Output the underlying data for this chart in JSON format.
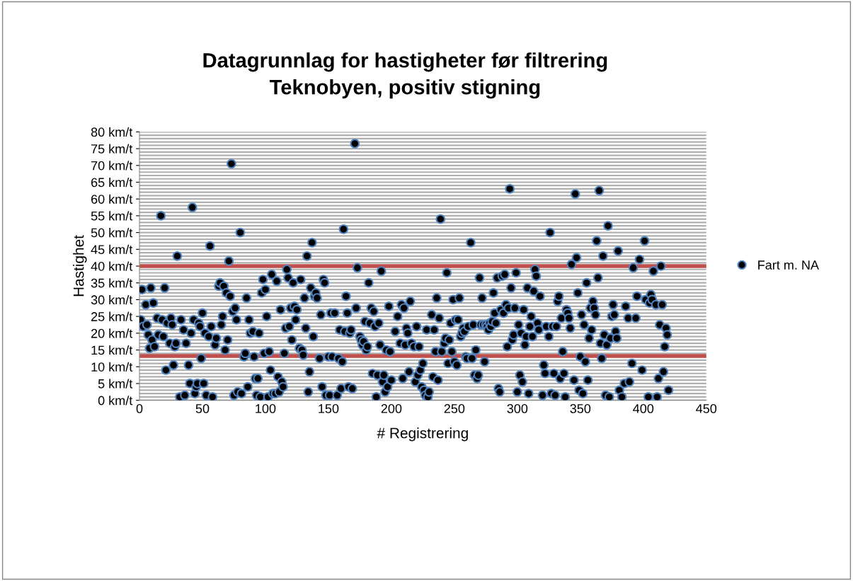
{
  "chart_data": {
    "type": "scatter",
    "title": "Datagrunnlag for hastigheter før filtrering\nTeknobyen, positiv stigning",
    "xlabel": "# Registrering",
    "ylabel": "Hastighet",
    "xlim": [
      0,
      450
    ],
    "xticks": [
      0,
      50,
      100,
      150,
      200,
      250,
      300,
      350,
      400,
      450
    ],
    "ylim": [
      0,
      80
    ],
    "yticks": [
      {
        "value": 0,
        "label": "0 km/t"
      },
      {
        "value": 5,
        "label": "5 km/t"
      },
      {
        "value": 10,
        "label": "10 km/t"
      },
      {
        "value": 15,
        "label": "15 km/t"
      },
      {
        "value": 20,
        "label": "20 km/t"
      },
      {
        "value": 25,
        "label": "25 km/t"
      },
      {
        "value": 30,
        "label": "30 km/t"
      },
      {
        "value": 35,
        "label": "35 km/t"
      },
      {
        "value": 40,
        "label": "40 km/t"
      },
      {
        "value": 45,
        "label": "45 km/t"
      },
      {
        "value": 50,
        "label": "50 km/t"
      },
      {
        "value": 55,
        "label": "55 km/t"
      },
      {
        "value": 60,
        "label": "60 km/t"
      },
      {
        "value": 65,
        "label": "65 km/t"
      },
      {
        "value": 70,
        "label": "70 km/t"
      },
      {
        "value": 75,
        "label": "75 km/t"
      },
      {
        "value": 80,
        "label": "80 km/t"
      }
    ],
    "grid": "y",
    "legend": "right",
    "marker": "circle",
    "ref_lines": [
      {
        "axis": "y",
        "value": 40,
        "color": "#c0504d"
      },
      {
        "axis": "y",
        "value": 13.2,
        "color": "#c0504d"
      }
    ],
    "series": [
      {
        "name": "Fart m. NA",
        "color": "#000000",
        "x": [
          1,
          2,
          3,
          5,
          6,
          7,
          8,
          9,
          10,
          11,
          12,
          14,
          15,
          17,
          18,
          19,
          20,
          21,
          22,
          24,
          25,
          26,
          27,
          28,
          29,
          30,
          32,
          33,
          35,
          36,
          37,
          39,
          40,
          41,
          42,
          43,
          44,
          45,
          46,
          47,
          48,
          49,
          50,
          51,
          52,
          53,
          55,
          56,
          57,
          58,
          60,
          61,
          63,
          64,
          65,
          66,
          67,
          68,
          69,
          70,
          71,
          72,
          73,
          74,
          75,
          76,
          77,
          78,
          80,
          81,
          83,
          84,
          85,
          86,
          87,
          88,
          90,
          91,
          92,
          93,
          94,
          95,
          96,
          97,
          98,
          99,
          100,
          101,
          102,
          103,
          104,
          105,
          106,
          108,
          109,
          110,
          111,
          112,
          113,
          114,
          115,
          116,
          117,
          118,
          119,
          120,
          121,
          122,
          123,
          124,
          125,
          127,
          128,
          129,
          130,
          131,
          132,
          133,
          134,
          135,
          136,
          137,
          138,
          139,
          140,
          141,
          143,
          144,
          145,
          146,
          147,
          148,
          150,
          151,
          152,
          153,
          155,
          157,
          158,
          159,
          160,
          161,
          162,
          163,
          164,
          165,
          166,
          167,
          168,
          169,
          171,
          172,
          173,
          175,
          176,
          177,
          178,
          179,
          180,
          181,
          182,
          183,
          184,
          185,
          186,
          187,
          188,
          189,
          190,
          191,
          192,
          193,
          194,
          195,
          196,
          197,
          198,
          199,
          200,
          203,
          205,
          207,
          208,
          209,
          210,
          211,
          212,
          213,
          214,
          215,
          216,
          218,
          219,
          220,
          221,
          222,
          223,
          224,
          225,
          226,
          227,
          228,
          229,
          230,
          232,
          233,
          234,
          235,
          236,
          237,
          238,
          239,
          240,
          242,
          243,
          244,
          245,
          246,
          247,
          248,
          249,
          250,
          251,
          252,
          253,
          254,
          255,
          256,
          257,
          258,
          259,
          260,
          261,
          263,
          264,
          265,
          266,
          267,
          268,
          269,
          270,
          271,
          272,
          273,
          274,
          275,
          276,
          277,
          278,
          279,
          280,
          281,
          282,
          283,
          284,
          285,
          286,
          287,
          288,
          289,
          290,
          291,
          292,
          293,
          294,
          295,
          296,
          297,
          298,
          299,
          300,
          301,
          302,
          303,
          304,
          305,
          306,
          307,
          308,
          309,
          310,
          311,
          312,
          313,
          314,
          315,
          316,
          317,
          318,
          320,
          321,
          322,
          323,
          325,
          326,
          327,
          328,
          329,
          330,
          331,
          332,
          333,
          334,
          335,
          336,
          337,
          338,
          339,
          340,
          341,
          342,
          343,
          345,
          346,
          347,
          348,
          349,
          350,
          351,
          352,
          353,
          354,
          355,
          356,
          357,
          358,
          359,
          360,
          361,
          362,
          363,
          364,
          365,
          366,
          367,
          368,
          369,
          370,
          371,
          372,
          373,
          374,
          375,
          376,
          377,
          378,
          379,
          380,
          381,
          383,
          385,
          386,
          388,
          389,
          391,
          392,
          394,
          395,
          397,
          399,
          401,
          402,
          404,
          405,
          406,
          407,
          408,
          410,
          411,
          412,
          413,
          414,
          415,
          416,
          417,
          418,
          419,
          420
        ],
        "values": [
          24,
          33,
          22,
          28.5,
          22.5,
          19.5,
          15.5,
          33.5,
          18,
          29,
          16,
          24.5,
          19.5,
          55,
          24,
          19,
          33.5,
          9,
          23,
          17,
          24.5,
          22.5,
          10.5,
          16,
          17,
          43,
          1,
          24,
          21,
          1.5,
          17,
          10.5,
          5,
          20,
          57.5,
          24,
          2,
          4,
          5,
          23,
          22,
          12.5,
          26,
          5,
          20,
          1.5,
          19,
          46,
          22,
          1,
          16.5,
          18.5,
          34,
          35,
          22.5,
          25,
          34,
          15,
          32,
          18,
          41.5,
          31,
          70.5,
          26.5,
          1.5,
          27.5,
          24,
          2.5,
          50,
          2,
          13,
          14,
          30.5,
          4,
          24,
          20,
          20.5,
          13,
          6.5,
          1.5,
          6.5,
          20,
          1,
          32,
          36,
          14,
          33,
          25,
          1,
          14.5,
          9,
          37.5,
          2,
          2,
          35.5,
          7,
          2.5,
          27,
          5.5,
          4,
          14,
          21.5,
          39,
          36.5,
          22,
          27.5,
          18,
          35,
          28,
          24,
          27,
          15.5,
          36,
          15,
          13.5,
          30.5,
          21.5,
          43,
          2.5,
          8.5,
          33.5,
          47,
          19,
          31,
          32,
          30.5,
          12.5,
          25.5,
          4,
          36,
          35,
          1.5,
          13,
          1.5,
          26,
          13,
          26,
          1.5,
          12.5,
          21,
          3.5,
          11.5,
          51,
          20.5,
          31,
          26,
          4,
          20,
          21,
          3.5,
          76.5,
          27.5,
          39.5,
          19,
          18,
          16.5,
          17.5,
          23.5,
          15,
          16,
          35,
          23,
          27.5,
          8,
          26.5,
          22,
          1,
          7.5,
          23,
          16.5,
          38.5,
          5.5,
          7.5,
          2.5,
          15,
          4,
          28,
          14.5,
          6,
          20.5,
          25,
          17,
          28.5,
          6.5,
          27.5,
          16.5,
          21.5,
          20,
          8.5,
          29.5,
          17,
          16,
          5.5,
          22,
          7.5,
          16,
          9,
          4,
          11,
          3,
          1.5,
          21,
          1,
          2.5,
          25.5,
          7,
          21,
          14.5,
          30.5,
          6,
          24.5,
          54,
          14.5,
          17,
          18.5,
          38,
          11,
          18,
          23,
          14.5,
          30,
          11.5,
          24,
          10.5,
          24,
          30.5,
          19,
          20,
          21.5,
          20.5,
          13,
          12.5,
          22,
          47,
          12.5,
          22.5,
          7.5,
          15,
          6.5,
          7.5,
          36.5,
          22.5,
          30.5,
          22.5,
          11.5,
          22.5,
          22,
          21,
          23,
          22,
          23.5,
          32,
          26,
          23,
          36.5,
          3.5,
          2.5,
          27,
          37,
          26,
          37.5,
          28.5,
          16,
          27.5,
          63,
          33.5,
          18,
          19.5,
          27.5,
          38,
          2.5,
          22.5,
          7.5,
          20,
          5.5,
          27,
          16.5,
          19,
          33.5,
          2,
          22,
          25,
          19,
          32.5,
          39,
          37,
          23,
          21,
          31,
          1.5,
          10.5,
          8,
          22,
          19,
          50,
          2,
          22,
          8,
          1.5,
          22,
          29.5,
          31,
          6.5,
          24.5,
          14.5,
          8,
          1,
          27,
          26,
          24.5,
          21.5,
          40.5,
          6,
          61.5,
          42.5,
          32,
          3,
          13,
          25.5,
          2,
          22.5,
          11.5,
          35,
          6,
          18.5,
          27.5,
          21,
          29.5,
          27.5,
          25.5,
          47.5,
          36.5,
          62.5,
          17,
          12.5,
          43,
          19.5,
          1.5,
          16.5,
          52,
          1,
          18.5,
          25,
          28.5,
          25.5,
          20.5,
          18.5,
          44.5,
          3,
          1,
          5,
          28,
          24.5,
          5.5,
          11,
          39.5,
          24.5,
          31,
          42,
          9,
          47.5,
          30,
          1,
          29,
          31.5,
          30,
          38.5,
          28.5,
          1,
          6.5,
          22.5,
          40,
          28.5,
          8.5,
          16,
          21.5,
          19.5,
          3
        ]
      }
    ]
  }
}
